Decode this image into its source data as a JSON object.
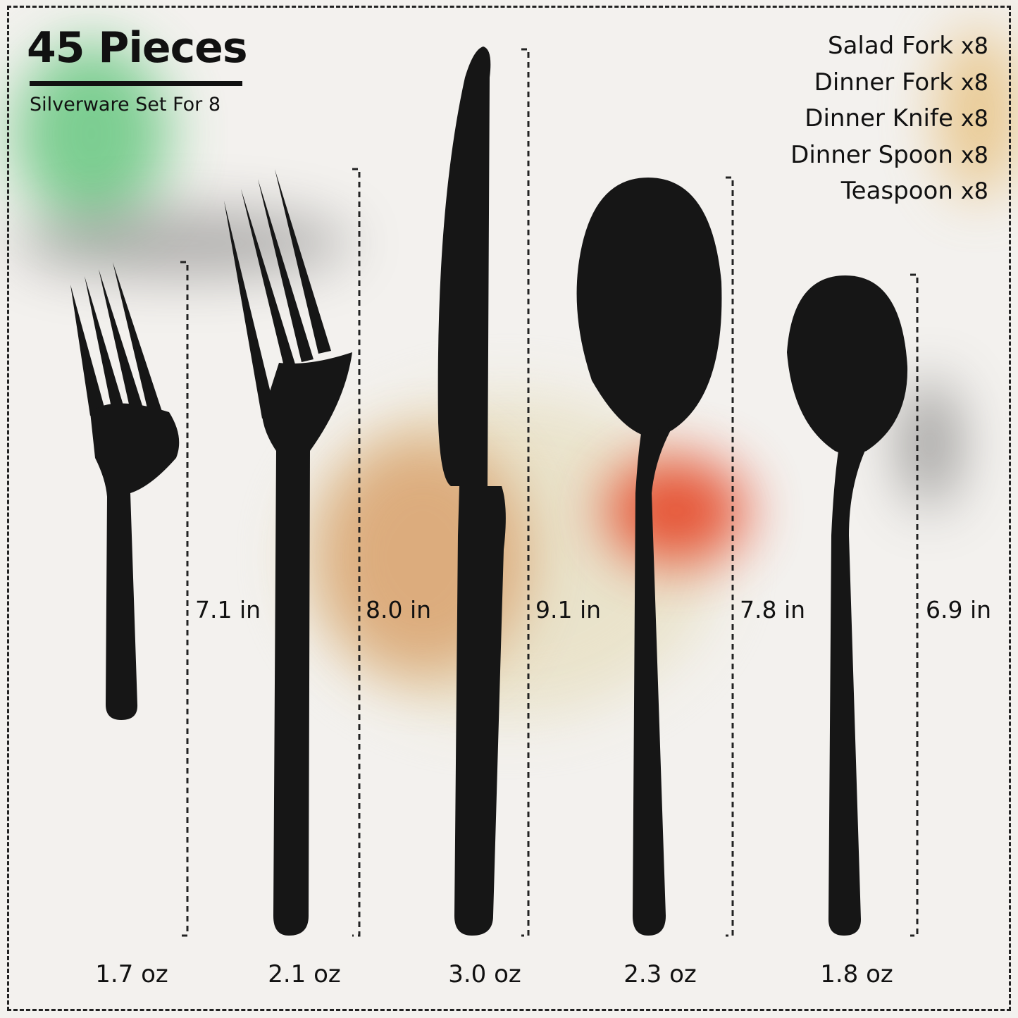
{
  "header": {
    "title": "45 Pieces",
    "subtitle": "Silverware Set For 8"
  },
  "contents": [
    {
      "name": "Salad Fork",
      "qty": "x8"
    },
    {
      "name": "Dinner Fork",
      "qty": "x8"
    },
    {
      "name": "Dinner Knife",
      "qty": "x8"
    },
    {
      "name": "Dinner Spoon",
      "qty": "x8"
    },
    {
      "name": "Teaspoon",
      "qty": "x8"
    }
  ],
  "pieces": [
    {
      "icon": "salad-fork-icon",
      "length": "7.1 in",
      "weight": "1.7 oz"
    },
    {
      "icon": "dinner-fork-icon",
      "length": "8.0 in",
      "weight": "2.1 oz"
    },
    {
      "icon": "dinner-knife-icon",
      "length": "9.1 in",
      "weight": "3.0 oz"
    },
    {
      "icon": "dinner-spoon-icon",
      "length": "7.8 in",
      "weight": "2.3 oz"
    },
    {
      "icon": "teaspoon-icon",
      "length": "6.9 in",
      "weight": "1.8 oz"
    }
  ],
  "colors": {
    "cutlery": "#161616",
    "background": "#f3f1ee"
  }
}
